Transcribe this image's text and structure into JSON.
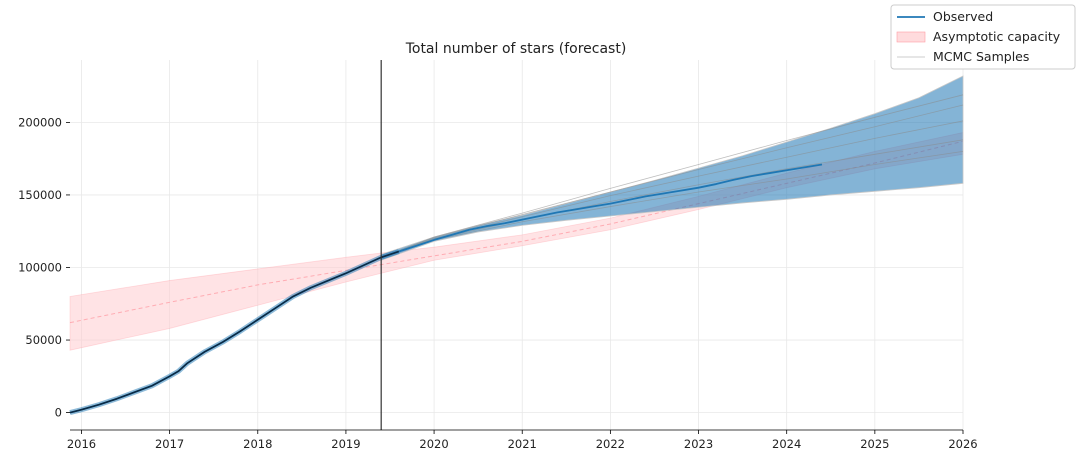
{
  "chart_data": {
    "type": "line",
    "title": "Total number of stars (forecast)",
    "xlabel": "",
    "ylabel": "",
    "xlim": [
      2015.87,
      2026.0
    ],
    "ylim": [
      -12000,
      243000
    ],
    "x_ticks": [
      2016,
      2017,
      2018,
      2019,
      2020,
      2021,
      2022,
      2023,
      2024,
      2025,
      2026
    ],
    "x_tick_labels": [
      "2016",
      "2017",
      "2018",
      "2019",
      "2020",
      "2021",
      "2022",
      "2023",
      "2024",
      "2025",
      "2026"
    ],
    "y_ticks": [
      0,
      50000,
      100000,
      150000,
      200000
    ],
    "y_tick_labels": [
      "0",
      "50000",
      "100000",
      "150000",
      "200000"
    ],
    "grid": true,
    "legend_position": "top-right",
    "forecast_start": 2019.4,
    "colors": {
      "observed": "#1f77b4",
      "observed_fit": "#0b2a44",
      "forecast_band": "#1f77b4",
      "capacity_fill": "#ffcccf",
      "capacity_line": "#ff9da6",
      "samples": "#8a8a8a",
      "vline": "#333333",
      "grid": "#e8e8e8"
    },
    "legend": [
      {
        "label": "Observed",
        "kind": "line",
        "color": "#1f77b4"
      },
      {
        "label": "Asymptotic capacity",
        "kind": "patch",
        "color": "#ffcccf"
      },
      {
        "label": "MCMC Samples",
        "kind": "thin-line",
        "color": "#cccccc"
      }
    ],
    "series": [
      {
        "name": "Observed",
        "x": [
          2015.87,
          2016.0,
          2016.2,
          2016.4,
          2016.6,
          2016.8,
          2017.0,
          2017.1,
          2017.2,
          2017.4,
          2017.6,
          2017.8,
          2018.0,
          2018.2,
          2018.4,
          2018.6,
          2018.8,
          2019.0,
          2019.2,
          2019.4,
          2019.6,
          2019.8,
          2020.0,
          2020.2,
          2020.4,
          2020.6,
          2020.8,
          2021.0,
          2021.2,
          2021.4,
          2021.6,
          2021.8,
          2022.0,
          2022.2,
          2022.4,
          2022.6,
          2022.8,
          2023.0,
          2023.2,
          2023.4,
          2023.6,
          2023.8,
          2024.0,
          2024.2,
          2024.4
        ],
        "y": [
          0,
          2000,
          5500,
          9500,
          14000,
          18500,
          25000,
          28500,
          34000,
          42000,
          48500,
          56000,
          64000,
          72000,
          80000,
          86000,
          91000,
          96000,
          101500,
          107000,
          111000,
          115000,
          119000,
          122500,
          126000,
          128500,
          130500,
          133000,
          135500,
          138000,
          140000,
          142000,
          144000,
          146500,
          149000,
          151000,
          153000,
          155000,
          157500,
          160500,
          163000,
          165000,
          167000,
          169000,
          171000
        ]
      }
    ],
    "forecast_band": {
      "x": [
        2019.4,
        2020.0,
        2020.5,
        2021.0,
        2021.5,
        2022.0,
        2022.5,
        2023.0,
        2023.5,
        2024.0,
        2024.5,
        2025.0,
        2025.5,
        2026.0
      ],
      "lower": [
        105000,
        118000,
        124500,
        129000,
        132500,
        135500,
        138500,
        141500,
        144500,
        147000,
        150000,
        152500,
        155000,
        158000
      ],
      "upper": [
        109000,
        121000,
        129000,
        136000,
        144000,
        152000,
        160000,
        168500,
        177000,
        186500,
        196000,
        206000,
        217000,
        232000
      ]
    },
    "capacity": {
      "x": [
        2015.87,
        2017.0,
        2018.0,
        2019.0,
        2019.4,
        2020.0,
        2021.0,
        2022.0,
        2023.0,
        2024.0,
        2025.0,
        2026.0
      ],
      "mid": [
        62000,
        76000,
        88000,
        98000,
        102000,
        108000,
        118000,
        130000,
        144000,
        158000,
        172000,
        187000
      ],
      "lower": [
        43000,
        58000,
        74000,
        90000,
        96000,
        105000,
        115000,
        126000,
        140000,
        155000,
        168000,
        178000
      ],
      "upper": [
        80000,
        91000,
        99000,
        107000,
        110000,
        114000,
        122500,
        134000,
        149000,
        165000,
        180000,
        193000
      ]
    },
    "mcmc_samples": [
      {
        "x": [
          2019.4,
          2020.0,
          2021.0,
          2022.0,
          2023.0,
          2024.0,
          2025.0,
          2026.0
        ],
        "y": [
          107000,
          119500,
          133000,
          145500,
          157000,
          168000,
          178000,
          188000
        ]
      },
      {
        "x": [
          2019.4,
          2020.0,
          2021.0,
          2022.0,
          2023.0,
          2024.0,
          2025.0,
          2026.0
        ],
        "y": [
          107000,
          120000,
          135000,
          149500,
          163000,
          176000,
          189000,
          201000
        ]
      },
      {
        "x": [
          2019.4,
          2020.0,
          2021.0,
          2022.0,
          2023.0,
          2024.0,
          2025.0,
          2026.0
        ],
        "y": [
          107000,
          120500,
          136500,
          152000,
          167500,
          182500,
          197000,
          212000
        ]
      },
      {
        "x": [
          2019.4,
          2020.0,
          2021.0,
          2022.0,
          2023.0,
          2024.0,
          2025.0,
          2026.0
        ],
        "y": [
          107000,
          121000,
          137500,
          154500,
          171000,
          187500,
          203500,
          219000
        ]
      },
      {
        "x": [
          2019.4,
          2020.0,
          2021.0,
          2022.0,
          2023.0,
          2024.0,
          2025.0,
          2026.0
        ],
        "y": [
          107000,
          119000,
          131500,
          142000,
          152000,
          161000,
          171000,
          180000
        ]
      }
    ]
  }
}
